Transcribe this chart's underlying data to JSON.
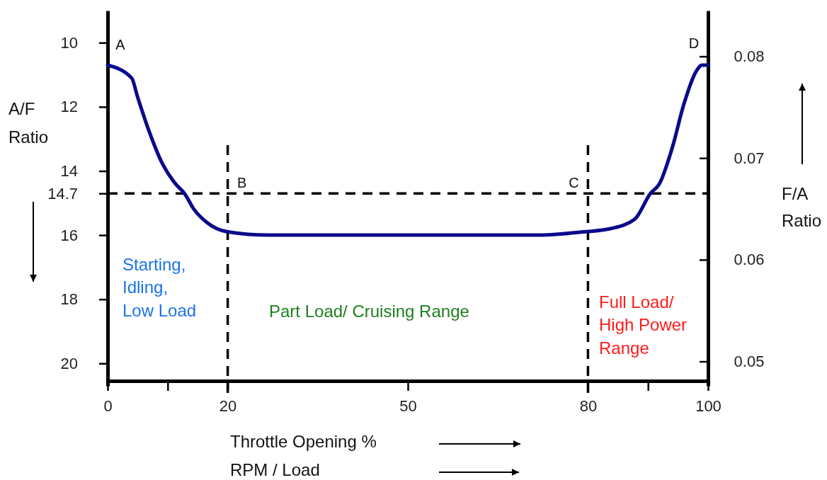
{
  "chart_data": {
    "type": "line",
    "xlabel": "Throttle Opening %\nRPM / Load",
    "ylabel": "A/F\nRatio",
    "y2label": "F/A\nRatio",
    "x": [
      0,
      4,
      5,
      6.6,
      9.2,
      11.3,
      12.8,
      14.4,
      16.5,
      20,
      26.9,
      71.8,
      79.2,
      83.7,
      87.8,
      90.4,
      91.9,
      94,
      96,
      98,
      99,
      100
    ],
    "series": [
      {
        "color": "#0a0a8c",
        "values": [
          10.7,
          11.1,
          11.7,
          12.6,
          13.8,
          14.4,
          14.7,
          15.2,
          15.6,
          15.9,
          16,
          16,
          15.9,
          15.8,
          15.5,
          14.7,
          14.4,
          13.3,
          11.9,
          10.9,
          10.7,
          10.7
        ]
      }
    ],
    "xlim": [
      0,
      100
    ],
    "xticks": [
      0,
      {
        "value": 10,
        "label": null
      },
      20,
      50,
      80,
      {
        "value": 90,
        "label": null
      },
      100
    ],
    "ylim": [
      20.7,
      9
    ],
    "yticks": [
      10,
      12,
      14,
      14.7,
      16,
      18,
      20
    ],
    "y2lim": [
      0.0476,
      0.0845
    ],
    "y2ticks": [
      0.08,
      0.07,
      0.06,
      0.05
    ],
    "ref_lines": [
      {
        "axis": "y",
        "value": 14.7,
        "line_style": "dashed",
        "color": "#000000"
      },
      {
        "axis": "x",
        "value": 20,
        "line_style": "dashed",
        "color": "#000000"
      },
      {
        "axis": "x",
        "value": 80,
        "line_style": "dashed",
        "color": "#000000"
      }
    ],
    "annotations": [
      {
        "text": "A",
        "x": 0,
        "y": 10.7
      },
      {
        "text": "B",
        "x": 20,
        "y": 14.7
      },
      {
        "text": "C",
        "x": 80,
        "y": 14.7
      },
      {
        "text": "D",
        "x": 100,
        "y": 10.7
      },
      "Starting,\nIdling,\nLow Load",
      "Part Load/ Cruising Range",
      "Full Load/\nHigh Power\nRange"
    ],
    "grid": false,
    "legend": false,
    "marker": "none",
    "line_style": "solid"
  }
}
